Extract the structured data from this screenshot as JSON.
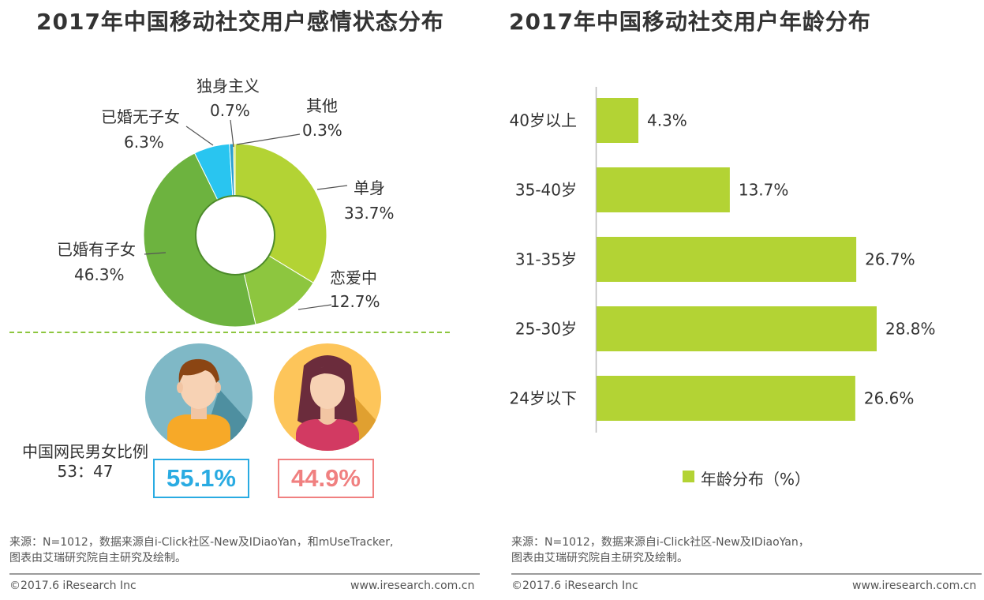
{
  "left": {
    "title": "2017年中国移动社交用户感情状态分布",
    "chart_data": {
      "type": "pie",
      "title": "2017年中国移动社交用户感情状态分布",
      "slices": [
        {
          "label": "单身",
          "value": 33.7,
          "value_text": "33.7%",
          "color": "#b3d334"
        },
        {
          "label": "恋爱中",
          "value": 12.7,
          "value_text": "12.7%",
          "color": "#8dc63f"
        },
        {
          "label": "已婚有子女",
          "value": 46.3,
          "value_text": "46.3%",
          "color": "#6db33f"
        },
        {
          "label": "已婚无子女",
          "value": 6.3,
          "value_text": "6.3%",
          "color": "#29c5f0"
        },
        {
          "label": "独身主义",
          "value": 0.7,
          "value_text": "0.7%",
          "color": "#2a9fd0"
        },
        {
          "label": "其他",
          "value": 0.3,
          "value_text": "0.3%",
          "color": "#e0e020"
        }
      ]
    },
    "gender": {
      "title": "中国网民男女比例",
      "ratio": "53：47",
      "male_pct": "55.1%",
      "female_pct": "44.9%",
      "male_color": "#29abe2",
      "female_color": "#f08080"
    },
    "source_line1": "来源：N=1012，数据来源自i-Click社区-New及IDiaoYan，和mUseTracker,",
    "source_line2": "图表由艾瑞研究院自主研究及绘制。",
    "footer_left": "©2017.6 iResearch Inc",
    "footer_right": "www.iresearch.com.cn"
  },
  "right": {
    "title": "2017年中国移动社交用户年龄分布",
    "chart_data": {
      "type": "bar",
      "orientation": "horizontal",
      "title": "2017年中国移动社交用户年龄分布",
      "categories": [
        "40岁以上",
        "35-40岁",
        "31-35岁",
        "25-30岁",
        "24岁以下"
      ],
      "series": [
        {
          "name": "年龄分布（%）",
          "values": [
            4.3,
            13.7,
            26.7,
            28.8,
            26.6
          ],
          "color": "#b3d334"
        }
      ],
      "value_labels": [
        "4.3%",
        "13.7%",
        "26.7%",
        "28.8%",
        "26.6%"
      ],
      "xlim": [
        0,
        30
      ],
      "legend": "bottom"
    },
    "source_line1": "来源：N=1012，数据来源自i-Click社区-New及IDiaoYan，",
    "source_line2": "图表由艾瑞研究院自主研究及绘制。",
    "footer_left": "©2017.6 iResearch Inc",
    "footer_right": "www.iresearch.com.cn"
  }
}
